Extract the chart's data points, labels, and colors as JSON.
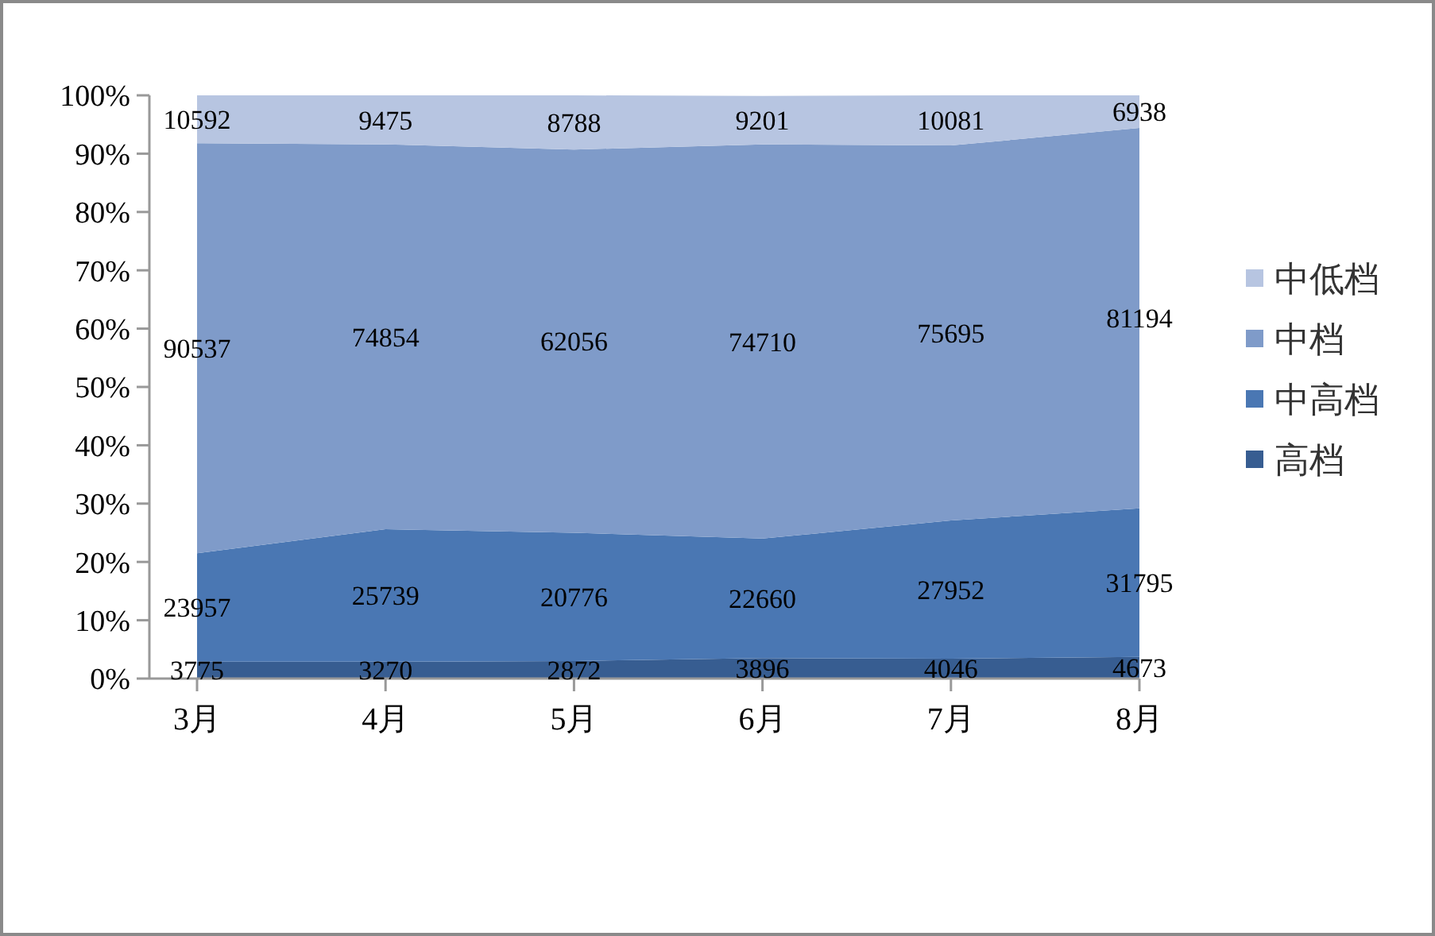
{
  "chart_data": {
    "type": "area",
    "stacked": true,
    "categories": [
      "3月",
      "4月",
      "5月",
      "6月",
      "7月",
      "8月"
    ],
    "series": [
      {
        "name": "高档",
        "color": "#375d91",
        "values": [
          2.9,
          2.9,
          3.0,
          3.5,
          3.4,
          3.7
        ]
      },
      {
        "name": "中高档",
        "color": "#4a77b3",
        "values": [
          18.6,
          22.7,
          22.0,
          20.5,
          23.7,
          25.5
        ]
      },
      {
        "name": "中档",
        "color": "#7f9bc9",
        "values": [
          70.3,
          66.0,
          65.7,
          67.6,
          64.3,
          65.2
        ]
      },
      {
        "name": "中低档",
        "color": "#b7c5e1",
        "values": [
          8.2,
          8.4,
          9.3,
          8.3,
          8.6,
          5.6
        ]
      }
    ],
    "ylim": [
      0,
      100
    ],
    "yticks": [
      {
        "value": 0,
        "label": "0%"
      },
      {
        "value": 10,
        "label": "10%"
      },
      {
        "value": 20,
        "label": "20%"
      },
      {
        "value": 30,
        "label": "30%"
      },
      {
        "value": 40,
        "label": "40%"
      },
      {
        "value": 50,
        "label": "50%"
      },
      {
        "value": 60,
        "label": "60%"
      },
      {
        "value": 70,
        "label": "70%"
      },
      {
        "value": 80,
        "label": "80%"
      },
      {
        "value": 90,
        "label": "90%"
      },
      {
        "value": 100,
        "label": "100%"
      }
    ],
    "annotations": [
      "3775",
      "23957",
      "90537",
      "10592",
      "3270",
      "25739",
      "74854",
      "9475",
      "2872",
      "20776",
      "62056",
      "8788",
      "3896",
      "22660",
      "74710",
      "9201",
      "4046",
      "27952",
      "75695",
      "10081",
      "4673",
      "31795",
      "81194",
      "6938"
    ],
    "legend": "right"
  }
}
